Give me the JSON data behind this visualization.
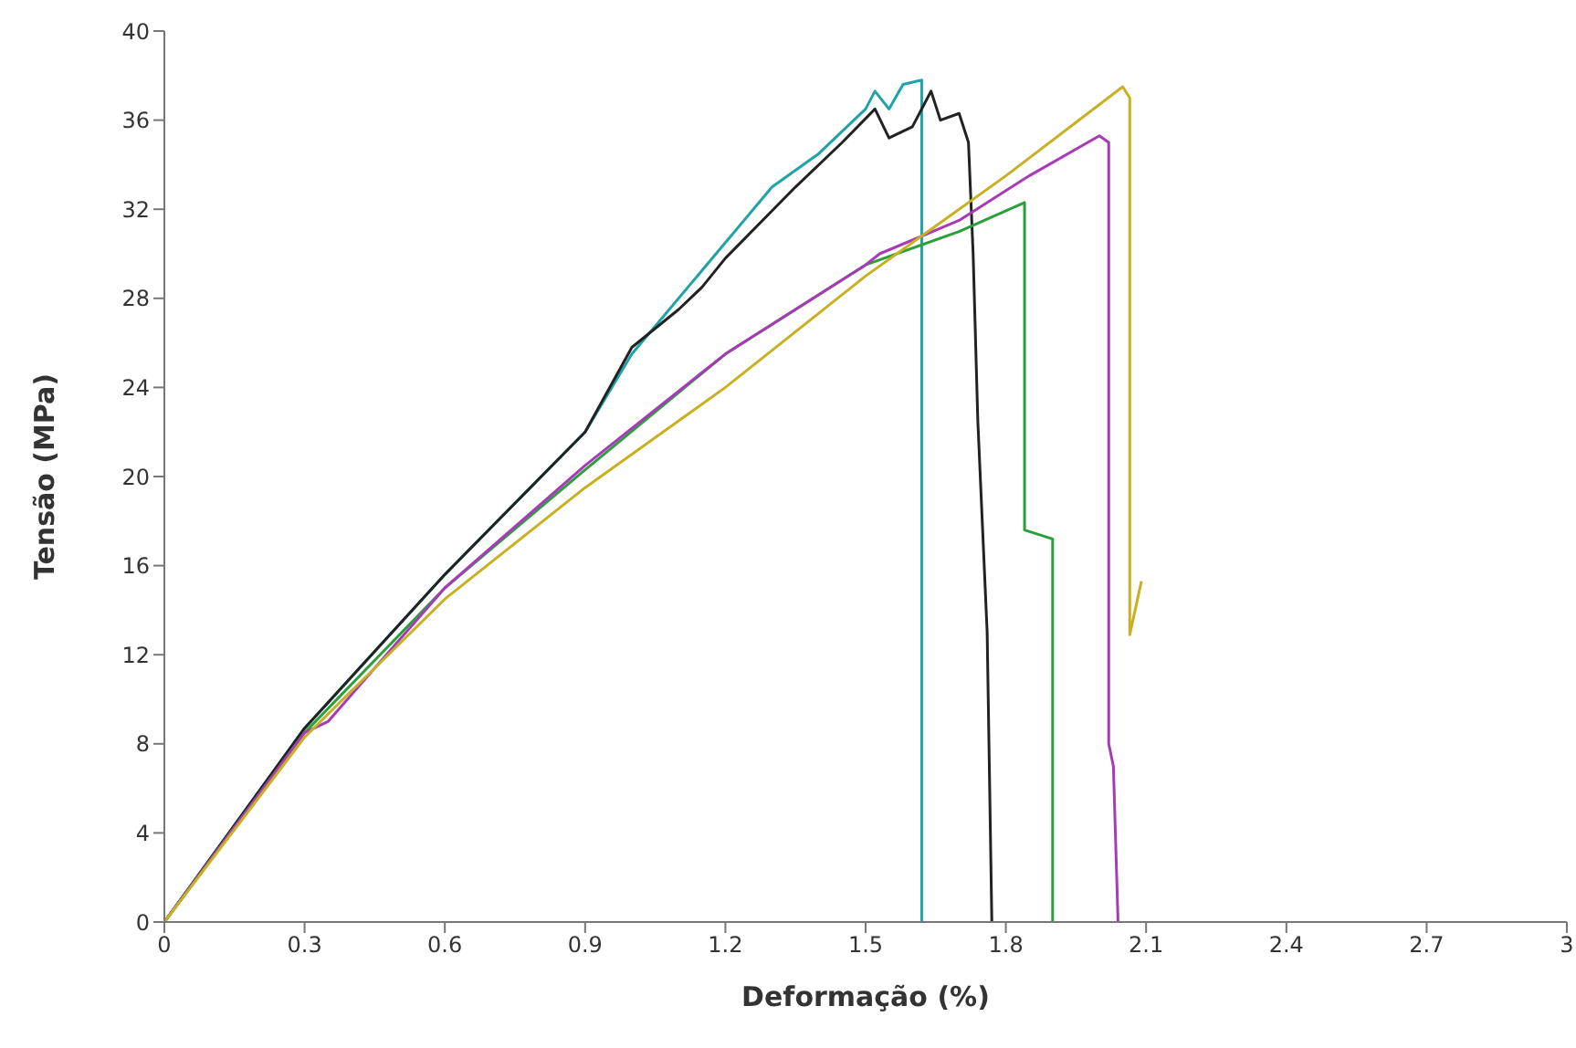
{
  "chart_data": {
    "type": "line",
    "xlabel": "Deformação (%)",
    "ylabel": "Tensão (MPa)",
    "xlim": [
      0,
      3
    ],
    "xticks": [
      0,
      0.3,
      0.6,
      0.9,
      1.2,
      1.5,
      1.8,
      2.1,
      2.4,
      2.7,
      3
    ],
    "ylim": [
      0,
      40
    ],
    "yticks": [
      0,
      4,
      8,
      12,
      16,
      20,
      24,
      28,
      32,
      36,
      40
    ],
    "grid": false,
    "legend": false,
    "marker": "none",
    "line_style": "solid",
    "series": [
      {
        "color": "#1fa3a8",
        "x": [
          0,
          0.3,
          0.6,
          0.9,
          1.0,
          1.2,
          1.3,
          1.4,
          1.5,
          1.52,
          1.55,
          1.58,
          1.62,
          1.62
        ],
        "values": [
          0,
          8.7,
          15.6,
          22,
          25.5,
          30.5,
          33,
          34.5,
          36.5,
          37.3,
          36.5,
          37.6,
          37.8,
          0
        ]
      },
      {
        "color": "#222222",
        "x": [
          0,
          0.3,
          0.6,
          0.9,
          1.0,
          1.1,
          1.15,
          1.2,
          1.35,
          1.45,
          1.52,
          1.55,
          1.6,
          1.64,
          1.66,
          1.7,
          1.72,
          1.73,
          1.74,
          1.76,
          1.77
        ],
        "values": [
          0,
          8.7,
          15.6,
          22,
          25.8,
          27.5,
          28.5,
          29.8,
          33,
          35,
          36.5,
          35.2,
          35.7,
          37.3,
          36,
          36.3,
          35,
          30,
          22.5,
          13,
          0
        ]
      },
      {
        "color": "#2aa03a",
        "x": [
          0,
          0.3,
          0.6,
          0.9,
          1.2,
          1.5,
          1.7,
          1.84,
          1.84,
          1.9,
          1.9
        ],
        "values": [
          0,
          8.5,
          15,
          20.3,
          25.5,
          29.5,
          31,
          32.3,
          17.6,
          17.2,
          0
        ]
      },
      {
        "color": "#a83ab8",
        "x": [
          0,
          0.3,
          0.35,
          0.6,
          0.9,
          1.2,
          1.5,
          1.53,
          1.7,
          1.85,
          2.0,
          2.02,
          2.02,
          2.03,
          2.04
        ],
        "values": [
          0,
          8.5,
          9,
          15,
          20.5,
          25.5,
          29.5,
          30,
          31.5,
          33.5,
          35.3,
          35,
          8,
          7,
          0
        ]
      },
      {
        "color": "#c8b020",
        "x": [
          0,
          0.3,
          0.6,
          0.9,
          1.2,
          1.5,
          1.8,
          2.05,
          2.065,
          2.065,
          2.09
        ],
        "values": [
          0,
          8.3,
          14.5,
          19.5,
          24,
          29,
          33.5,
          37.5,
          37,
          12.9,
          15.3
        ]
      }
    ]
  }
}
